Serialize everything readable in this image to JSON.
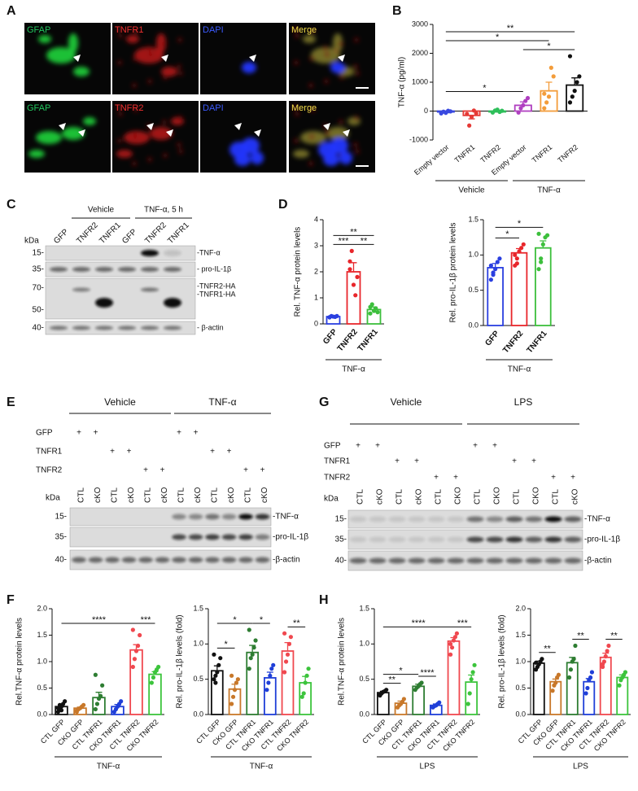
{
  "panel_labels": [
    "A",
    "B",
    "C",
    "D",
    "E",
    "F",
    "G",
    "H"
  ],
  "micrographs": [
    [
      "GFAP",
      "TNFR1",
      "DAPI",
      "Merge"
    ],
    [
      "GFAP",
      "TNFR2",
      "DAPI",
      "Merge"
    ]
  ],
  "blot_c": {
    "groups": [
      "Vehicle",
      "TNF-α, 5 h"
    ],
    "lanes": [
      "GFP",
      "TNFR2",
      "TNFR1",
      "GFP",
      "TNFR2",
      "TNFR1"
    ],
    "kda": "kDa",
    "markers": [
      "15-",
      "35-",
      "70-",
      "50-",
      "40-"
    ],
    "band_labels": [
      "-TNF-α",
      "- pro-IL-1β",
      "-TNFR2-HA",
      "-TNFR1-HA",
      "- β-actin"
    ]
  },
  "blot_e": {
    "groups": [
      "Vehicle",
      "TNF-α"
    ],
    "constructs": [
      {
        "label": "GFP",
        "lanes": [
          "+",
          "+",
          null,
          null,
          null,
          null,
          "+",
          "+",
          null,
          null,
          null,
          null
        ]
      },
      {
        "label": "TNFR1",
        "lanes": [
          null,
          null,
          "+",
          "+",
          null,
          null,
          null,
          null,
          "+",
          "+",
          null,
          null
        ]
      },
      {
        "label": "TNFR2",
        "lanes": [
          null,
          null,
          null,
          null,
          "+",
          "+",
          null,
          null,
          null,
          null,
          "+",
          "+"
        ]
      }
    ],
    "genotypes": [
      "CTL",
      "cKO",
      "CTL",
      "cKO",
      "CTL",
      "cKO",
      "CTL",
      "cKO",
      "CTL",
      "cKO",
      "CTL",
      "cKO"
    ],
    "kda": "kDa",
    "markers": [
      "15-",
      "35-",
      "40-"
    ],
    "band_labels": [
      "-TNF-α",
      "-pro-IL-1β",
      "-β-actin"
    ]
  },
  "blot_g": {
    "groups": [
      "Vehicle",
      "LPS"
    ],
    "constructs": [
      {
        "label": "GFP",
        "lanes": [
          "+",
          "+",
          null,
          null,
          null,
          null,
          "+",
          "+",
          null,
          null,
          null,
          null
        ]
      },
      {
        "label": "TNFR1",
        "lanes": [
          null,
          null,
          "+",
          "+",
          null,
          null,
          null,
          null,
          "+",
          "+",
          null,
          null
        ]
      },
      {
        "label": "TNFR2",
        "lanes": [
          null,
          null,
          null,
          null,
          "+",
          "+",
          null,
          null,
          null,
          null,
          "+",
          "+"
        ]
      }
    ],
    "genotypes": [
      "CTL",
      "cKO",
      "CTL",
      "cKO",
      "CTL",
      "CKO",
      "CTL",
      "CKO",
      "CTL",
      "CKO",
      "CTL",
      "cKO"
    ],
    "kda": "kDa",
    "markers": [
      "15-",
      "35-",
      "40-"
    ],
    "band_labels": [
      "-TNF-α",
      "-pro-IL-1β",
      "-β-actin"
    ]
  },
  "chart_data": [
    {
      "type": "bar",
      "ylabel": "TNF-α (pg/ml)",
      "categories": [
        "Empty vector",
        "TNFR1",
        "TNFR2",
        "Empty vector",
        "TNFR1",
        "TNFR2"
      ],
      "values": [
        -30,
        -150,
        0,
        200,
        700,
        900
      ],
      "errors": [
        30,
        120,
        30,
        120,
        300,
        250
      ],
      "colors": [
        "#3949e0",
        "#e53935",
        "#2ebf5a",
        "#b040c0",
        "#f39c3a",
        "#111111"
      ],
      "points": [
        [
          -80,
          -20,
          -60,
          10,
          -10
        ],
        [
          -100,
          -500,
          -200,
          20,
          -80
        ],
        [
          -50,
          20,
          50,
          -30,
          10
        ],
        [
          -50,
          100,
          200,
          350,
          450
        ],
        [
          100,
          300,
          500,
          1500,
          1200,
          600
        ],
        [
          300,
          500,
          700,
          1000,
          1200,
          1900
        ]
      ],
      "ylim": [
        -1000,
        3000
      ],
      "yticks": [
        -1000,
        0,
        1000,
        2000,
        3000
      ],
      "group_labels": [
        "Vehicle",
        "TNF-α"
      ],
      "brackets": [
        {
          "from": 0,
          "to": 3,
          "label": "*"
        },
        {
          "from": 3,
          "to": 5,
          "label": "*"
        },
        {
          "from": 0,
          "to": 4,
          "label": "*"
        },
        {
          "from": 0,
          "to": 5,
          "label": "**"
        }
      ]
    },
    {
      "type": "bar",
      "ylabel": "Rel. TNF-α protein levels",
      "categories": [
        "GFP",
        "TNFR2",
        "TNFR1"
      ],
      "values": [
        0.28,
        2.0,
        0.55
      ],
      "errors": [
        0.03,
        0.35,
        0.1
      ],
      "colors": [
        "#2a3fe0",
        "#e8262b",
        "#3cbf3c"
      ],
      "points": [
        [
          0.25,
          0.3,
          0.28,
          0.27,
          0.3,
          0.26
        ],
        [
          2.4,
          2.8,
          1.5,
          1.1,
          1.8,
          2.1
        ],
        [
          0.4,
          0.75,
          0.5,
          0.6,
          0.45,
          0.65
        ]
      ],
      "ylim": [
        0,
        4
      ],
      "yticks": [
        0,
        1,
        2,
        3,
        4
      ],
      "group_labels": [
        "TNF-α"
      ],
      "brackets": [
        {
          "from": 0,
          "to": 1,
          "label": "***"
        },
        {
          "from": 1,
          "to": 2,
          "label": "**"
        },
        {
          "from": 0,
          "to": 2,
          "label": "**"
        }
      ]
    },
    {
      "type": "bar",
      "ylabel": "Rel. pro-IL-1β protein levels",
      "categories": [
        "GFP",
        "TNFR2",
        "TNFR1"
      ],
      "values": [
        0.82,
        1.03,
        1.1
      ],
      "errors": [
        0.06,
        0.06,
        0.1
      ],
      "colors": [
        "#2a3fe0",
        "#e8262b",
        "#3cbf3c"
      ],
      "points": [
        [
          0.65,
          0.75,
          0.8,
          0.9,
          0.95,
          0.85,
          0.72
        ],
        [
          0.85,
          0.95,
          1.05,
          1.1,
          1.15,
          1.0,
          0.88
        ],
        [
          0.8,
          0.95,
          1.15,
          1.25,
          1.28,
          1.3,
          0.9
        ]
      ],
      "ylim": [
        0,
        1.5
      ],
      "yticks": [
        {
          "value": 0,
          "label": "0.0"
        },
        0.5,
        {
          "value": 1,
          "label": "1.0"
        },
        1.5
      ],
      "group_labels": [
        "TNF-α"
      ],
      "brackets": [
        {
          "from": 0,
          "to": 1,
          "label": "*"
        },
        {
          "from": 0,
          "to": 2,
          "label": "*"
        }
      ]
    },
    {
      "type": "bar",
      "ylabel": "Rel.TNF-α protein levels",
      "categories": [
        "CTL GFP",
        "CKO GFP",
        "CTL TNFR1",
        "CKO TNFR1",
        "CTL TNFR2",
        "CKO TNFR2"
      ],
      "values": [
        0.15,
        0.12,
        0.32,
        0.15,
        1.22,
        0.76
      ],
      "errors": [
        0.03,
        0.02,
        0.1,
        0.04,
        0.1,
        0.05
      ],
      "colors": [
        "#111111",
        "#c8782a",
        "#2e7d32",
        "#1f3fd8",
        "#f0484f",
        "#3cc43c"
      ],
      "points": [
        [
          0.05,
          0.1,
          0.15,
          0.2,
          0.25,
          0.12,
          0.18,
          0.08
        ],
        [
          0.05,
          0.1,
          0.12,
          0.15,
          0.18,
          0.08
        ],
        [
          0.1,
          0.2,
          0.3,
          0.35,
          0.55,
          0.75
        ],
        [
          0.05,
          0.1,
          0.15,
          0.2,
          0.25
        ],
        [
          0.9,
          1.05,
          1.2,
          1.3,
          1.5,
          1.6
        ],
        [
          0.6,
          0.7,
          0.8,
          0.85,
          0.9
        ]
      ],
      "ylim": [
        0,
        2
      ],
      "yticks": [
        {
          "value": 0,
          "label": "0.0"
        },
        0.5,
        {
          "value": 1,
          "label": "1.0"
        },
        1.5,
        {
          "value": 2,
          "label": "2.0"
        }
      ],
      "group_labels": [
        "TNF-α"
      ],
      "brackets": [
        {
          "from": 4,
          "to": 5,
          "label": "***"
        },
        {
          "from": 0,
          "to": 4,
          "label": "****"
        }
      ]
    },
    {
      "type": "bar",
      "ylabel": "Rel. pro-IL-1β  levels (fold)",
      "categories": [
        "CTL GFP",
        "CKO GFP",
        "CTL TNFR1",
        "CKO TNFR1",
        "CTL TNFR2",
        "CKO TNFR2"
      ],
      "values": [
        0.62,
        0.36,
        0.88,
        0.52,
        0.9,
        0.45
      ],
      "errors": [
        0.07,
        0.07,
        0.1,
        0.08,
        0.12,
        0.09
      ],
      "colors": [
        "#111111",
        "#c8782a",
        "#2e7d32",
        "#1f3fd8",
        "#f0484f",
        "#3cc43c"
      ],
      "points": [
        [
          0.5,
          0.55,
          0.6,
          0.7,
          0.8,
          0.85,
          0.45
        ],
        [
          0.15,
          0.25,
          0.35,
          0.45,
          0.5,
          0.55
        ],
        [
          0.65,
          0.8,
          0.85,
          0.95,
          1.05,
          1.2
        ],
        [
          0.35,
          0.45,
          0.55,
          0.65,
          0.7
        ],
        [
          0.6,
          0.75,
          0.85,
          1.0,
          1.1,
          1.15
        ],
        [
          0.25,
          0.3,
          0.45,
          0.55,
          0.65
        ]
      ],
      "ylim": [
        0,
        1.5
      ],
      "yticks": [
        {
          "value": 0,
          "label": "0.0"
        },
        0.5,
        {
          "value": 1,
          "label": "1.0"
        },
        1.5
      ],
      "group_labels": [
        "TNF-α"
      ],
      "brackets": [
        {
          "from": 0,
          "to": 1,
          "label": "*"
        },
        {
          "from": 0,
          "to": 2,
          "label": "*"
        },
        {
          "from": 2,
          "to": 3,
          "label": "*"
        },
        {
          "from": 4,
          "to": 5,
          "label": "**"
        }
      ]
    },
    {
      "type": "bar",
      "ylabel": "Rel.TNF-α protein levels",
      "categories": [
        "CTL GFP",
        "CKO GFP",
        "CTL TNFR1",
        "CKO TNFR1",
        "CTL TNFR2",
        "CKO TNFR2"
      ],
      "values": [
        0.31,
        0.16,
        0.4,
        0.13,
        1.04,
        0.46
      ],
      "errors": [
        0.02,
        0.03,
        0.03,
        0.02,
        0.05,
        0.1
      ],
      "colors": [
        "#111111",
        "#c8782a",
        "#2e7d32",
        "#1f3fd8",
        "#f0484f",
        "#3cc43c"
      ],
      "points": [
        [
          0.27,
          0.3,
          0.32,
          0.33,
          0.35,
          0.28
        ],
        [
          0.1,
          0.13,
          0.15,
          0.18,
          0.22
        ],
        [
          0.35,
          0.38,
          0.4,
          0.43,
          0.45
        ],
        [
          0.1,
          0.12,
          0.13,
          0.15,
          0.17
        ],
        [
          0.85,
          0.95,
          1.05,
          1.1,
          1.15,
          1.0
        ],
        [
          0.15,
          0.3,
          0.5,
          0.6,
          0.7
        ]
      ],
      "ylim": [
        0,
        1.5
      ],
      "yticks": [
        {
          "value": 0,
          "label": "0.0"
        },
        0.5,
        {
          "value": 1,
          "label": "1.0"
        },
        1.5
      ],
      "group_labels": [
        "LPS"
      ],
      "brackets": [
        {
          "from": 0,
          "to": 1,
          "label": "**"
        },
        {
          "from": 0,
          "to": 2,
          "label": "*"
        },
        {
          "from": 2,
          "to": 3,
          "label": "****"
        },
        {
          "from": 4,
          "to": 5,
          "label": "***"
        },
        {
          "from": 0,
          "to": 4,
          "label": "****"
        }
      ]
    },
    {
      "type": "bar",
      "ylabel": "Rel. pro-IL-1β  levels (fold)",
      "categories": [
        "CTL GFP",
        "CKO GFP",
        "CTL TNFR1",
        "CKO TNFR1",
        "CTL TNFR2",
        "CKO TNFR2"
      ],
      "values": [
        0.97,
        0.62,
        0.98,
        0.62,
        1.08,
        0.7
      ],
      "errors": [
        0.04,
        0.05,
        0.1,
        0.06,
        0.08,
        0.05
      ],
      "colors": [
        "#111111",
        "#c8782a",
        "#2e7d32",
        "#1f3fd8",
        "#f0484f",
        "#3cc43c"
      ],
      "points": [
        [
          0.85,
          0.9,
          0.95,
          1.0,
          1.05,
          0.98
        ],
        [
          0.45,
          0.55,
          0.6,
          0.7,
          0.75
        ],
        [
          0.7,
          0.85,
          1.0,
          1.05,
          1.3
        ],
        [
          0.4,
          0.5,
          0.65,
          0.7,
          0.8
        ],
        [
          0.9,
          1.0,
          1.1,
          1.2,
          1.3,
          0.95
        ],
        [
          0.55,
          0.65,
          0.7,
          0.75,
          0.8
        ]
      ],
      "ylim": [
        0,
        2
      ],
      "yticks": [
        {
          "value": 0,
          "label": "0.0"
        },
        0.5,
        {
          "value": 1,
          "label": "1.0"
        },
        1.5,
        {
          "value": 2,
          "label": "2.0"
        }
      ],
      "group_labels": [
        "LPS"
      ],
      "brackets": [
        {
          "from": 0,
          "to": 1,
          "label": "**"
        },
        {
          "from": 2,
          "to": 3,
          "label": "**"
        },
        {
          "from": 4,
          "to": 5,
          "label": "**"
        }
      ]
    }
  ]
}
